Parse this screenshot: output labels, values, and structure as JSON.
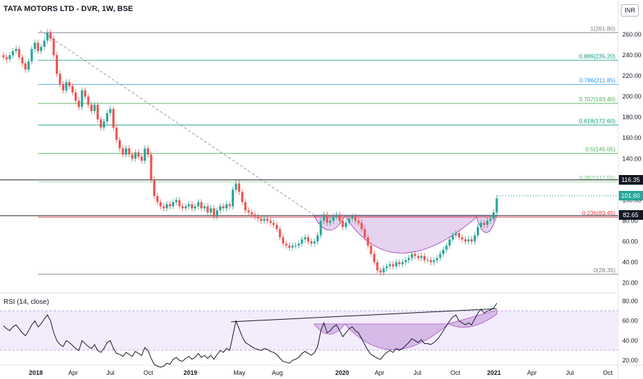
{
  "header": {
    "title": "TATA MOTORS LTD - DVR, 1W, BSE",
    "currency": "INR"
  },
  "rsi": {
    "title": "RSI (14, close)",
    "ticks": [
      "80.00",
      "60.00",
      "40.00",
      "20.00"
    ]
  },
  "x_axis": {
    "labels": [
      "2018",
      "Apr",
      "Jul",
      "Oct",
      "2019",
      "May",
      "Aug",
      "2020",
      "Apr",
      "Jul",
      "Oct",
      "2021",
      "Apr",
      "Jul",
      "Oct"
    ]
  },
  "price_badges": {
    "upper": "116.35",
    "last": "101.60",
    "support": "82.65"
  },
  "colors": {
    "up": "#26a69a",
    "down": "#ef5350",
    "pattern_fill": "#dcc4ea",
    "rsi_band": "#f1e9fb"
  },
  "chart_data": {
    "type": "candlestick",
    "title": "TATA MOTORS LTD - DVR, 1W, BSE",
    "ylim": [
      15,
      272
    ],
    "yticks": [
      20,
      40,
      60,
      80,
      100,
      120,
      140,
      160,
      180,
      200,
      220,
      240,
      260
    ],
    "x_labels": [
      "2018",
      "Apr",
      "Jul",
      "Oct",
      "2019",
      "May",
      "Aug",
      "2020",
      "Apr",
      "Jul",
      "Oct",
      "2021",
      "Apr",
      "Jul",
      "Oct"
    ],
    "fibonacci": [
      {
        "label": "1(261.80)",
        "value": 261.8,
        "color": "#787b86"
      },
      {
        "label": "0.886(235.20)",
        "value": 235.2,
        "color": "#089981"
      },
      {
        "label": "0.786(211.85)",
        "value": 211.85,
        "color": "#2196f3"
      },
      {
        "label": "0.707(193.40)",
        "value": 193.4,
        "color": "#4caf50"
      },
      {
        "label": "0.618(172.60)",
        "value": 172.6,
        "color": "#089981"
      },
      {
        "label": "0.5(145.05)",
        "value": 145.05,
        "color": "#4caf50"
      },
      {
        "label": "0.382(117.55)",
        "value": 117.55,
        "color": "#81c784"
      },
      {
        "label": "0.236(83.45)",
        "value": 83.45,
        "color": "#f23645"
      },
      {
        "label": "0(28.35)",
        "value": 28.35,
        "color": "#787b86"
      }
    ],
    "close": [
      238,
      236,
      240,
      244,
      246,
      238,
      232,
      226,
      234,
      246,
      252,
      244,
      248,
      254,
      262,
      256,
      240,
      222,
      212,
      206,
      214,
      210,
      204,
      196,
      190,
      206,
      200,
      192,
      186,
      192,
      178,
      170,
      176,
      184,
      188,
      170,
      158,
      150,
      144,
      150,
      144,
      140,
      146,
      142,
      138,
      150,
      144,
      120,
      104,
      98,
      94,
      92,
      96,
      94,
      98,
      100,
      94,
      92,
      94,
      96,
      92,
      94,
      98,
      92,
      94,
      88,
      92,
      84,
      90,
      94,
      92,
      96,
      94,
      110,
      116,
      108,
      98,
      90,
      88,
      86,
      84,
      82,
      80,
      82,
      80,
      78,
      76,
      72,
      64,
      58,
      56,
      54,
      56,
      56,
      58,
      62,
      64,
      60,
      58,
      60,
      66,
      80,
      86,
      78,
      80,
      84,
      86,
      80,
      74,
      78,
      82,
      84,
      80,
      78,
      72,
      64,
      56,
      48,
      40,
      32,
      30,
      34,
      36,
      38,
      36,
      40,
      38,
      40,
      42,
      44,
      48,
      46,
      44,
      46,
      42,
      42,
      40,
      42,
      44,
      48,
      52,
      56,
      62,
      66,
      68,
      64,
      62,
      60,
      62,
      60,
      66,
      74,
      78,
      76,
      80,
      82,
      88,
      101.6
    ],
    "rsi_values": [
      55,
      52,
      50,
      54,
      56,
      52,
      48,
      45,
      50,
      56,
      60,
      54,
      57,
      62,
      66,
      60,
      48,
      40,
      36,
      34,
      40,
      38,
      35,
      32,
      30,
      40,
      37,
      34,
      32,
      36,
      30,
      28,
      32,
      38,
      40,
      32,
      27,
      26,
      24,
      28,
      26,
      24,
      29,
      27,
      25,
      33,
      30,
      22,
      16,
      14,
      13,
      14,
      17,
      16,
      21,
      23,
      20,
      19,
      22,
      24,
      21,
      23,
      27,
      23,
      25,
      22,
      25,
      21,
      26,
      30,
      28,
      32,
      30,
      45,
      60,
      52,
      44,
      38,
      36,
      34,
      32,
      31,
      30,
      32,
      31,
      29,
      28,
      26,
      22,
      19,
      18,
      17,
      20,
      21,
      23,
      27,
      29,
      27,
      25,
      28,
      34,
      50,
      58,
      48,
      50,
      54,
      56,
      50,
      44,
      48,
      52,
      54,
      50,
      48,
      42,
      36,
      30,
      26,
      24,
      22,
      21,
      25,
      28,
      30,
      28,
      32,
      30,
      32,
      35,
      38,
      42,
      40,
      38,
      41,
      37,
      37,
      36,
      38,
      41,
      45,
      50,
      55,
      60,
      64,
      66,
      60,
      58,
      56,
      58,
      56,
      62,
      68,
      72,
      68,
      70,
      71,
      73,
      78
    ],
    "rsi_ylim": [
      15,
      85
    ]
  }
}
